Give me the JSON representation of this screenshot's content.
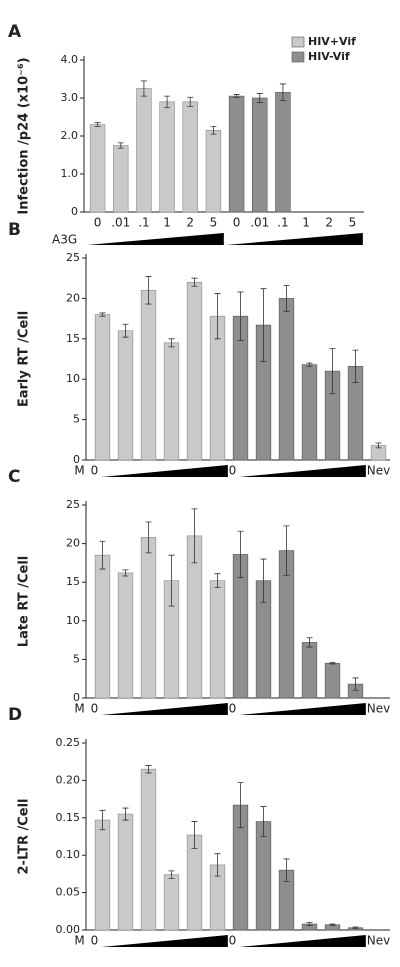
{
  "chart_data": [
    {
      "type": "bar",
      "panel": "A",
      "y_label": "Infection /p24 (x10⁻⁶)",
      "ramp_label": "A3G",
      "legend": "upper right",
      "ylim": [
        0,
        4
      ],
      "yticks": [
        0,
        {
          "value": 1,
          "label": "1.0"
        },
        {
          "value": 2,
          "label": "2.0"
        },
        {
          "value": 3,
          "label": "3.0"
        },
        {
          "value": 4,
          "label": "4.0"
        }
      ],
      "categories": [
        "0",
        ".01",
        ".1",
        "1",
        "2",
        "5",
        "0",
        ".01",
        ".1",
        "1",
        "2",
        "5"
      ],
      "series": [
        {
          "name": "HIV+Vif",
          "color": "#c9c9c9",
          "values": [
            2.3,
            1.75,
            3.25,
            2.9,
            2.9,
            2.15,
            null,
            null,
            null,
            null,
            null,
            null
          ],
          "errors": [
            0.05,
            0.07,
            0.2,
            0.15,
            0.12,
            0.1,
            null,
            null,
            null,
            null,
            null,
            null
          ]
        },
        {
          "name": "HIV-Vif",
          "color": "#8e8e8e",
          "values": [
            null,
            null,
            null,
            null,
            null,
            null,
            3.05,
            3.0,
            3.15,
            null,
            null,
            null
          ],
          "errors": [
            null,
            null,
            null,
            null,
            null,
            null,
            0.04,
            0.12,
            0.22,
            null,
            null,
            null
          ]
        }
      ]
    },
    {
      "type": "bar",
      "panel": "B",
      "y_label": "Early RT /Cell",
      "ylim": [
        0,
        25
      ],
      "yticks": [
        0,
        5,
        10,
        15,
        20,
        25
      ],
      "categories": [
        "M",
        "0",
        null,
        null,
        null,
        null,
        null,
        "0",
        null,
        null,
        null,
        null,
        null,
        "Nev"
      ],
      "series": [
        {
          "color": "#c9c9c9",
          "values": [
            null,
            18,
            16,
            21,
            14.5,
            22,
            17.8,
            null,
            null,
            null,
            null,
            null,
            null,
            1.8
          ],
          "errors": [
            null,
            0.2,
            0.8,
            1.7,
            0.5,
            0.5,
            2.8,
            null,
            null,
            null,
            null,
            null,
            null,
            0.3
          ]
        },
        {
          "color": "#8e8e8e",
          "values": [
            null,
            null,
            null,
            null,
            null,
            null,
            null,
            17.8,
            16.7,
            20,
            11.8,
            11,
            11.6,
            null
          ],
          "errors": [
            null,
            null,
            null,
            null,
            null,
            null,
            null,
            3,
            4.5,
            1.6,
            0.2,
            2.8,
            2,
            null
          ]
        }
      ]
    },
    {
      "type": "bar",
      "panel": "C",
      "y_label": "Late RT /Cell",
      "ylim": [
        0,
        25
      ],
      "yticks": [
        0,
        5,
        10,
        15,
        20,
        25
      ],
      "categories": [
        "M",
        "0",
        null,
        null,
        null,
        null,
        null,
        "0",
        null,
        null,
        null,
        null,
        null,
        "Nev"
      ],
      "series": [
        {
          "color": "#c9c9c9",
          "values": [
            null,
            18.5,
            16.2,
            20.8,
            15.2,
            21,
            15.2,
            null,
            null,
            null,
            null,
            null,
            null,
            null
          ],
          "errors": [
            null,
            1.8,
            0.4,
            2,
            3.3,
            3.5,
            0.9,
            null,
            null,
            null,
            null,
            null,
            null,
            null
          ]
        },
        {
          "color": "#8e8e8e",
          "values": [
            null,
            null,
            null,
            null,
            null,
            null,
            null,
            18.6,
            15.2,
            19.1,
            7.2,
            4.5,
            1.8,
            null
          ],
          "errors": [
            null,
            null,
            null,
            null,
            null,
            null,
            null,
            3,
            2.8,
            3.2,
            0.6,
            0.1,
            0.8,
            null
          ]
        }
      ]
    },
    {
      "type": "bar",
      "panel": "D",
      "y_label": "2-LTR /Cell",
      "ylim": [
        0,
        0.25
      ],
      "yticks": [
        {
          "value": 0,
          "label": "0.00"
        },
        {
          "value": 0.05,
          "label": "0.05"
        },
        {
          "value": 0.1,
          "label": "0.10"
        },
        {
          "value": 0.15,
          "label": "0.15"
        },
        {
          "value": 0.2,
          "label": "0.20"
        },
        {
          "value": 0.25,
          "label": "0.25"
        }
      ],
      "categories": [
        "M",
        "0",
        null,
        null,
        null,
        null,
        null,
        "0",
        null,
        null,
        null,
        null,
        null,
        "Nev"
      ],
      "series": [
        {
          "color": "#c9c9c9",
          "values": [
            null,
            0.147,
            0.155,
            0.215,
            0.074,
            0.127,
            0.087,
            null,
            null,
            null,
            null,
            null,
            null,
            null
          ],
          "errors": [
            null,
            0.013,
            0.008,
            0.005,
            0.005,
            0.018,
            0.015,
            null,
            null,
            null,
            null,
            null,
            null,
            null
          ]
        },
        {
          "color": "#8e8e8e",
          "values": [
            null,
            null,
            null,
            null,
            null,
            null,
            null,
            0.167,
            0.145,
            0.08,
            0.008,
            0.007,
            0.003,
            null
          ],
          "errors": [
            null,
            null,
            null,
            null,
            null,
            null,
            null,
            0.03,
            0.02,
            0.015,
            0.002,
            0.001,
            0.001,
            null
          ]
        }
      ]
    }
  ]
}
